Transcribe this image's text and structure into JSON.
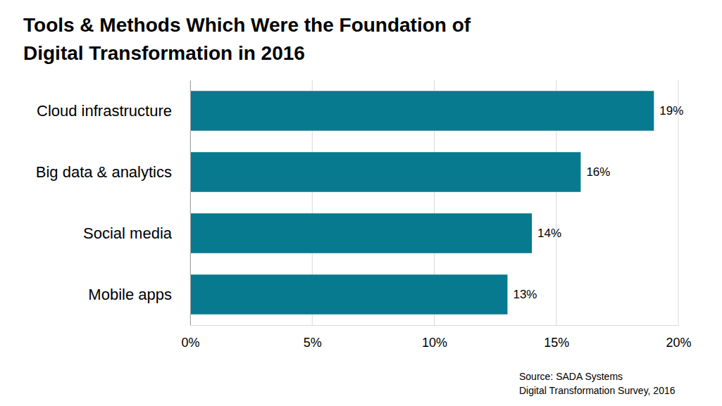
{
  "chart_data": {
    "type": "bar",
    "orientation": "horizontal",
    "title": "Tools & Methods Which Were the Foundation of Digital Transformation in 2016",
    "source": [
      "Source: SADA Systems",
      "Digital Transformation Survey, 2016"
    ],
    "categories": [
      "Cloud infrastructure",
      "Big data & analytics",
      "Social media",
      "Mobile apps"
    ],
    "values": [
      19,
      16,
      14,
      13
    ],
    "value_labels": [
      "19%",
      "16%",
      "14%",
      "13%"
    ],
    "color": "#077a8f",
    "xlim": [
      0,
      20
    ],
    "xticks": [
      {
        "value": 0,
        "label": "0%"
      },
      {
        "value": 5,
        "label": "5%"
      },
      {
        "value": 10,
        "label": "10%"
      },
      {
        "value": 15,
        "label": "15%"
      },
      {
        "value": 20,
        "label": "20%"
      }
    ],
    "grid": true,
    "data_labels": true
  }
}
